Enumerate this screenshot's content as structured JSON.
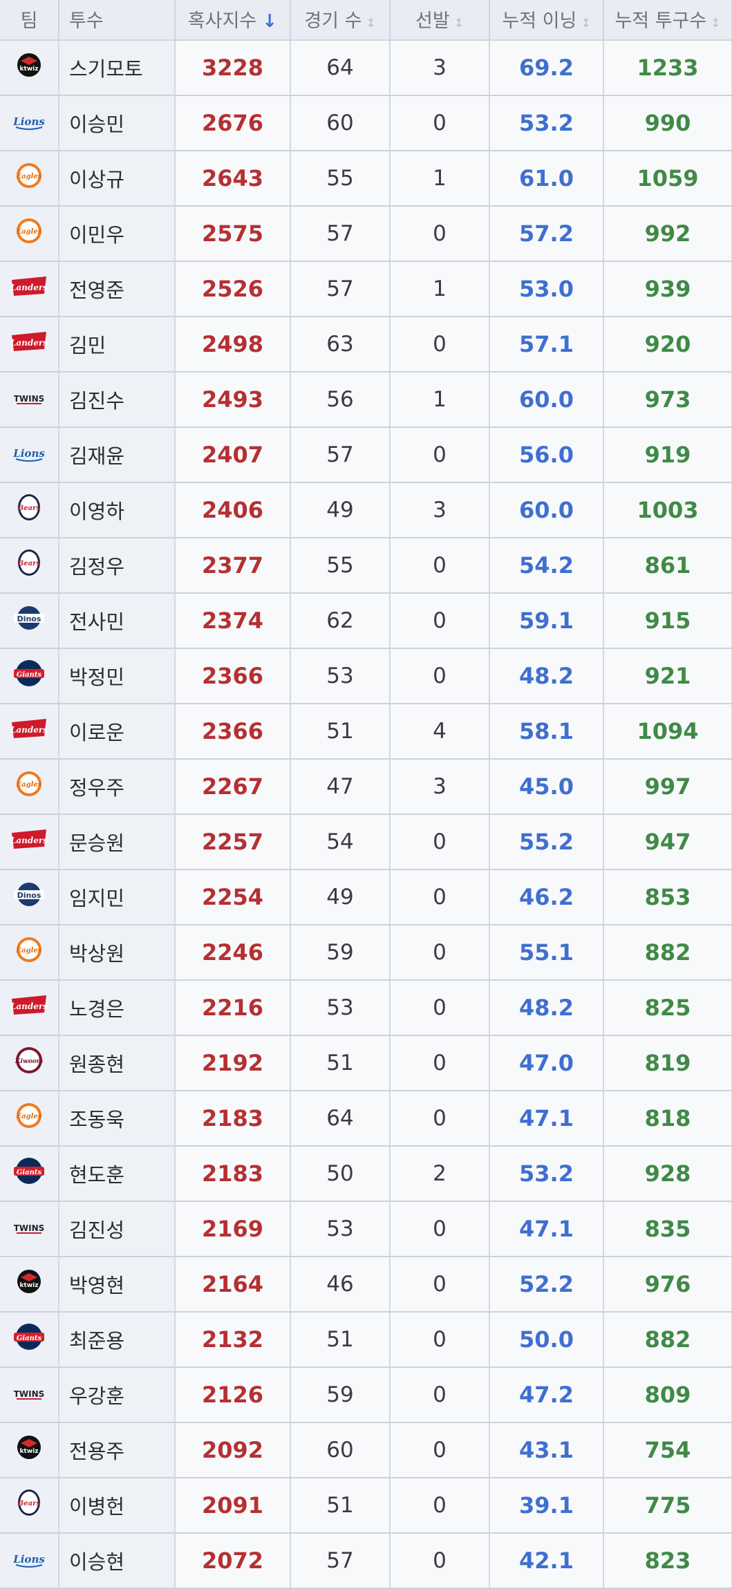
{
  "headers": {
    "team": "팀",
    "pitcher": "투수",
    "score": "혹사지수",
    "games": "경기 수",
    "starts": "선발",
    "innings": "누적 이닝",
    "pitches": "누적 투구수",
    "sort_icon": "↓",
    "sortable_icon": "↕"
  },
  "colors": {
    "score": "#b53032",
    "innings": "#3f6fcf",
    "pitches": "#3f8a46"
  },
  "rows": [
    {
      "team": "kt wiz",
      "logo": "ktwiz-logo",
      "name": "스기모토",
      "score": "3228",
      "games": "64",
      "starts": "3",
      "innings": "69.2",
      "pitches": "1233"
    },
    {
      "team": "Lions",
      "logo": "lions-logo",
      "name": "이승민",
      "score": "2676",
      "games": "60",
      "starts": "0",
      "innings": "53.2",
      "pitches": "990"
    },
    {
      "team": "Eagles",
      "logo": "eagles-logo",
      "name": "이상규",
      "score": "2643",
      "games": "55",
      "starts": "1",
      "innings": "61.0",
      "pitches": "1059"
    },
    {
      "team": "Eagles",
      "logo": "eagles-logo",
      "name": "이민우",
      "score": "2575",
      "games": "57",
      "starts": "0",
      "innings": "57.2",
      "pitches": "992"
    },
    {
      "team": "Landers",
      "logo": "landers-logo",
      "name": "전영준",
      "score": "2526",
      "games": "57",
      "starts": "1",
      "innings": "53.0",
      "pitches": "939"
    },
    {
      "team": "Landers",
      "logo": "landers-logo",
      "name": "김민",
      "score": "2498",
      "games": "63",
      "starts": "0",
      "innings": "57.1",
      "pitches": "920"
    },
    {
      "team": "Twins",
      "logo": "twins-logo",
      "name": "김진수",
      "score": "2493",
      "games": "56",
      "starts": "1",
      "innings": "60.0",
      "pitches": "973"
    },
    {
      "team": "Lions",
      "logo": "lions-logo",
      "name": "김재윤",
      "score": "2407",
      "games": "57",
      "starts": "0",
      "innings": "56.0",
      "pitches": "919"
    },
    {
      "team": "Bears",
      "logo": "bears-logo",
      "name": "이영하",
      "score": "2406",
      "games": "49",
      "starts": "3",
      "innings": "60.0",
      "pitches": "1003"
    },
    {
      "team": "Bears",
      "logo": "bears-logo",
      "name": "김정우",
      "score": "2377",
      "games": "55",
      "starts": "0",
      "innings": "54.2",
      "pitches": "861"
    },
    {
      "team": "Dinos",
      "logo": "dinos-logo",
      "name": "전사민",
      "score": "2374",
      "games": "62",
      "starts": "0",
      "innings": "59.1",
      "pitches": "915"
    },
    {
      "team": "Giants",
      "logo": "giants-logo",
      "name": "박정민",
      "score": "2366",
      "games": "53",
      "starts": "0",
      "innings": "48.2",
      "pitches": "921"
    },
    {
      "team": "Landers",
      "logo": "landers-logo",
      "name": "이로운",
      "score": "2366",
      "games": "51",
      "starts": "4",
      "innings": "58.1",
      "pitches": "1094"
    },
    {
      "team": "Eagles",
      "logo": "eagles-logo",
      "name": "정우주",
      "score": "2267",
      "games": "47",
      "starts": "3",
      "innings": "45.0",
      "pitches": "997"
    },
    {
      "team": "Landers",
      "logo": "landers-logo",
      "name": "문승원",
      "score": "2257",
      "games": "54",
      "starts": "0",
      "innings": "55.2",
      "pitches": "947"
    },
    {
      "team": "Dinos",
      "logo": "dinos-logo",
      "name": "임지민",
      "score": "2254",
      "games": "49",
      "starts": "0",
      "innings": "46.2",
      "pitches": "853"
    },
    {
      "team": "Eagles",
      "logo": "eagles-logo",
      "name": "박상원",
      "score": "2246",
      "games": "59",
      "starts": "0",
      "innings": "55.1",
      "pitches": "882"
    },
    {
      "team": "Landers",
      "logo": "landers-logo",
      "name": "노경은",
      "score": "2216",
      "games": "53",
      "starts": "0",
      "innings": "48.2",
      "pitches": "825"
    },
    {
      "team": "Kiwoom",
      "logo": "kiwoom-logo",
      "name": "원종현",
      "score": "2192",
      "games": "51",
      "starts": "0",
      "innings": "47.0",
      "pitches": "819"
    },
    {
      "team": "Eagles",
      "logo": "eagles-logo",
      "name": "조동욱",
      "score": "2183",
      "games": "64",
      "starts": "0",
      "innings": "47.1",
      "pitches": "818"
    },
    {
      "team": "Giants",
      "logo": "giants-logo",
      "name": "현도훈",
      "score": "2183",
      "games": "50",
      "starts": "2",
      "innings": "53.2",
      "pitches": "928"
    },
    {
      "team": "Twins",
      "logo": "twins-logo",
      "name": "김진성",
      "score": "2169",
      "games": "53",
      "starts": "0",
      "innings": "47.1",
      "pitches": "835"
    },
    {
      "team": "kt wiz",
      "logo": "ktwiz-logo",
      "name": "박영현",
      "score": "2164",
      "games": "46",
      "starts": "0",
      "innings": "52.2",
      "pitches": "976"
    },
    {
      "team": "Giants",
      "logo": "giants-logo",
      "name": "최준용",
      "score": "2132",
      "games": "51",
      "starts": "0",
      "innings": "50.0",
      "pitches": "882"
    },
    {
      "team": "Twins",
      "logo": "twins-logo",
      "name": "우강훈",
      "score": "2126",
      "games": "59",
      "starts": "0",
      "innings": "47.2",
      "pitches": "809"
    },
    {
      "team": "kt wiz",
      "logo": "ktwiz-logo",
      "name": "전용주",
      "score": "2092",
      "games": "60",
      "starts": "0",
      "innings": "43.1",
      "pitches": "754"
    },
    {
      "team": "Bears",
      "logo": "bears-logo",
      "name": "이병헌",
      "score": "2091",
      "games": "51",
      "starts": "0",
      "innings": "39.1",
      "pitches": "775"
    },
    {
      "team": "Lions",
      "logo": "lions-logo",
      "name": "이승현",
      "score": "2072",
      "games": "57",
      "starts": "0",
      "innings": "42.1",
      "pitches": "823"
    }
  ]
}
